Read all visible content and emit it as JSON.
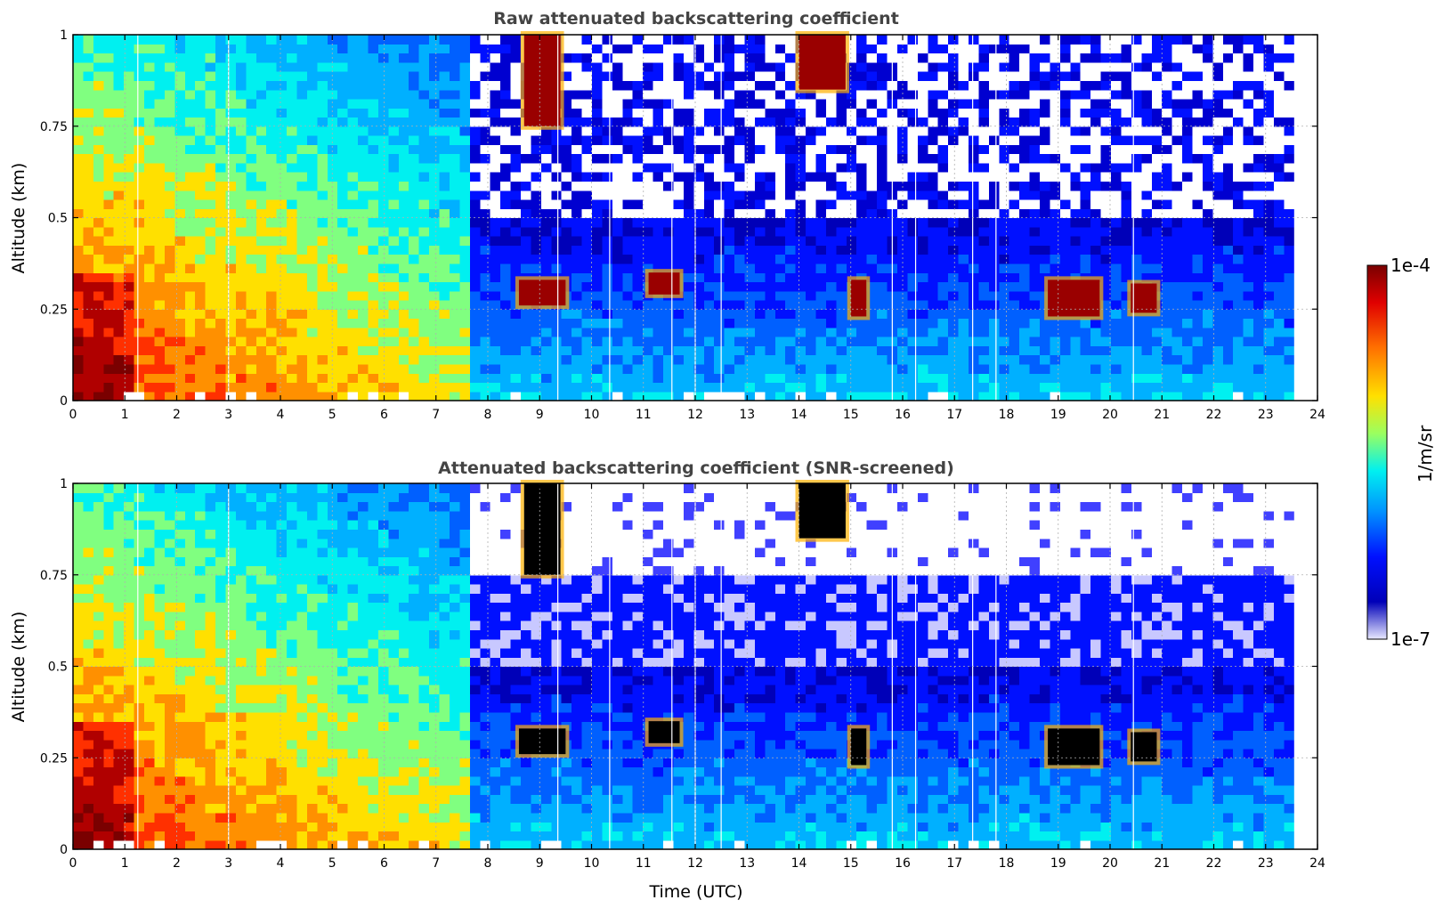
{
  "chart_data": [
    {
      "type": "heatmap",
      "title": "Raw attenuated backscattering coefficient",
      "xlabel": "",
      "ylabel": "Altitude (km)",
      "xlim": [
        0,
        24
      ],
      "ylim": [
        0,
        1
      ],
      "x_ticks": [
        "0",
        "1",
        "2",
        "3",
        "4",
        "5",
        "6",
        "7",
        "8",
        "9",
        "10",
        "11",
        "12",
        "13",
        "14",
        "15",
        "16",
        "17",
        "18",
        "19",
        "20",
        "21",
        "22",
        "23",
        "24"
      ],
      "y_ticks": [
        "0",
        "0.25",
        "0.5",
        "0.75",
        "1"
      ],
      "grid": true,
      "data_end_time": 23.55,
      "color_scale": "log",
      "features": [
        {
          "kind": "boundary-layer-aerosol",
          "time": [
            0,
            7.5
          ],
          "altitude": [
            0,
            1
          ],
          "level": "high"
        },
        {
          "kind": "cloud",
          "time": [
            8.6,
            9.5
          ],
          "altitude": [
            0.26,
            0.33
          ]
        },
        {
          "kind": "cloud",
          "time": [
            11.1,
            11.7
          ],
          "altitude": [
            0.29,
            0.35
          ]
        },
        {
          "kind": "cloud",
          "time": [
            15,
            15.3
          ],
          "altitude": [
            0.23,
            0.33
          ]
        },
        {
          "kind": "cloud",
          "time": [
            18.8,
            19.8
          ],
          "altitude": [
            0.23,
            0.33
          ]
        },
        {
          "kind": "cloud",
          "time": [
            20.4,
            20.9
          ],
          "altitude": [
            0.24,
            0.32
          ]
        },
        {
          "kind": "cloud",
          "time": [
            8.7,
            9.4
          ],
          "altitude": [
            0.75,
            1
          ]
        },
        {
          "kind": "cloud",
          "time": [
            14,
            14.9
          ],
          "altitude": [
            0.85,
            1
          ]
        }
      ]
    },
    {
      "type": "heatmap",
      "title": "Attenuated backscattering coefficient (SNR-screened)",
      "xlabel": "Time (UTC)",
      "ylabel": "Altitude (km)",
      "xlim": [
        0,
        24
      ],
      "ylim": [
        0,
        1
      ],
      "x_ticks": [
        "0",
        "1",
        "2",
        "3",
        "4",
        "5",
        "6",
        "7",
        "8",
        "9",
        "10",
        "11",
        "12",
        "13",
        "14",
        "15",
        "16",
        "17",
        "18",
        "19",
        "20",
        "21",
        "22",
        "23",
        "24"
      ],
      "y_ticks": [
        "0",
        "0.25",
        "0.5",
        "0.75",
        "1"
      ],
      "grid": true,
      "data_end_time": 23.55,
      "color_scale": "log"
    }
  ],
  "colorbar": {
    "label": "1/m/sr",
    "max_label": "1e-4",
    "min_label": "1e-7",
    "colors": [
      "#800000",
      "#ff0000",
      "#ff8000",
      "#ffff00",
      "#80ff80",
      "#00ffff",
      "#0080ff",
      "#0000ff",
      "#0000aa",
      "#ddddff"
    ]
  }
}
